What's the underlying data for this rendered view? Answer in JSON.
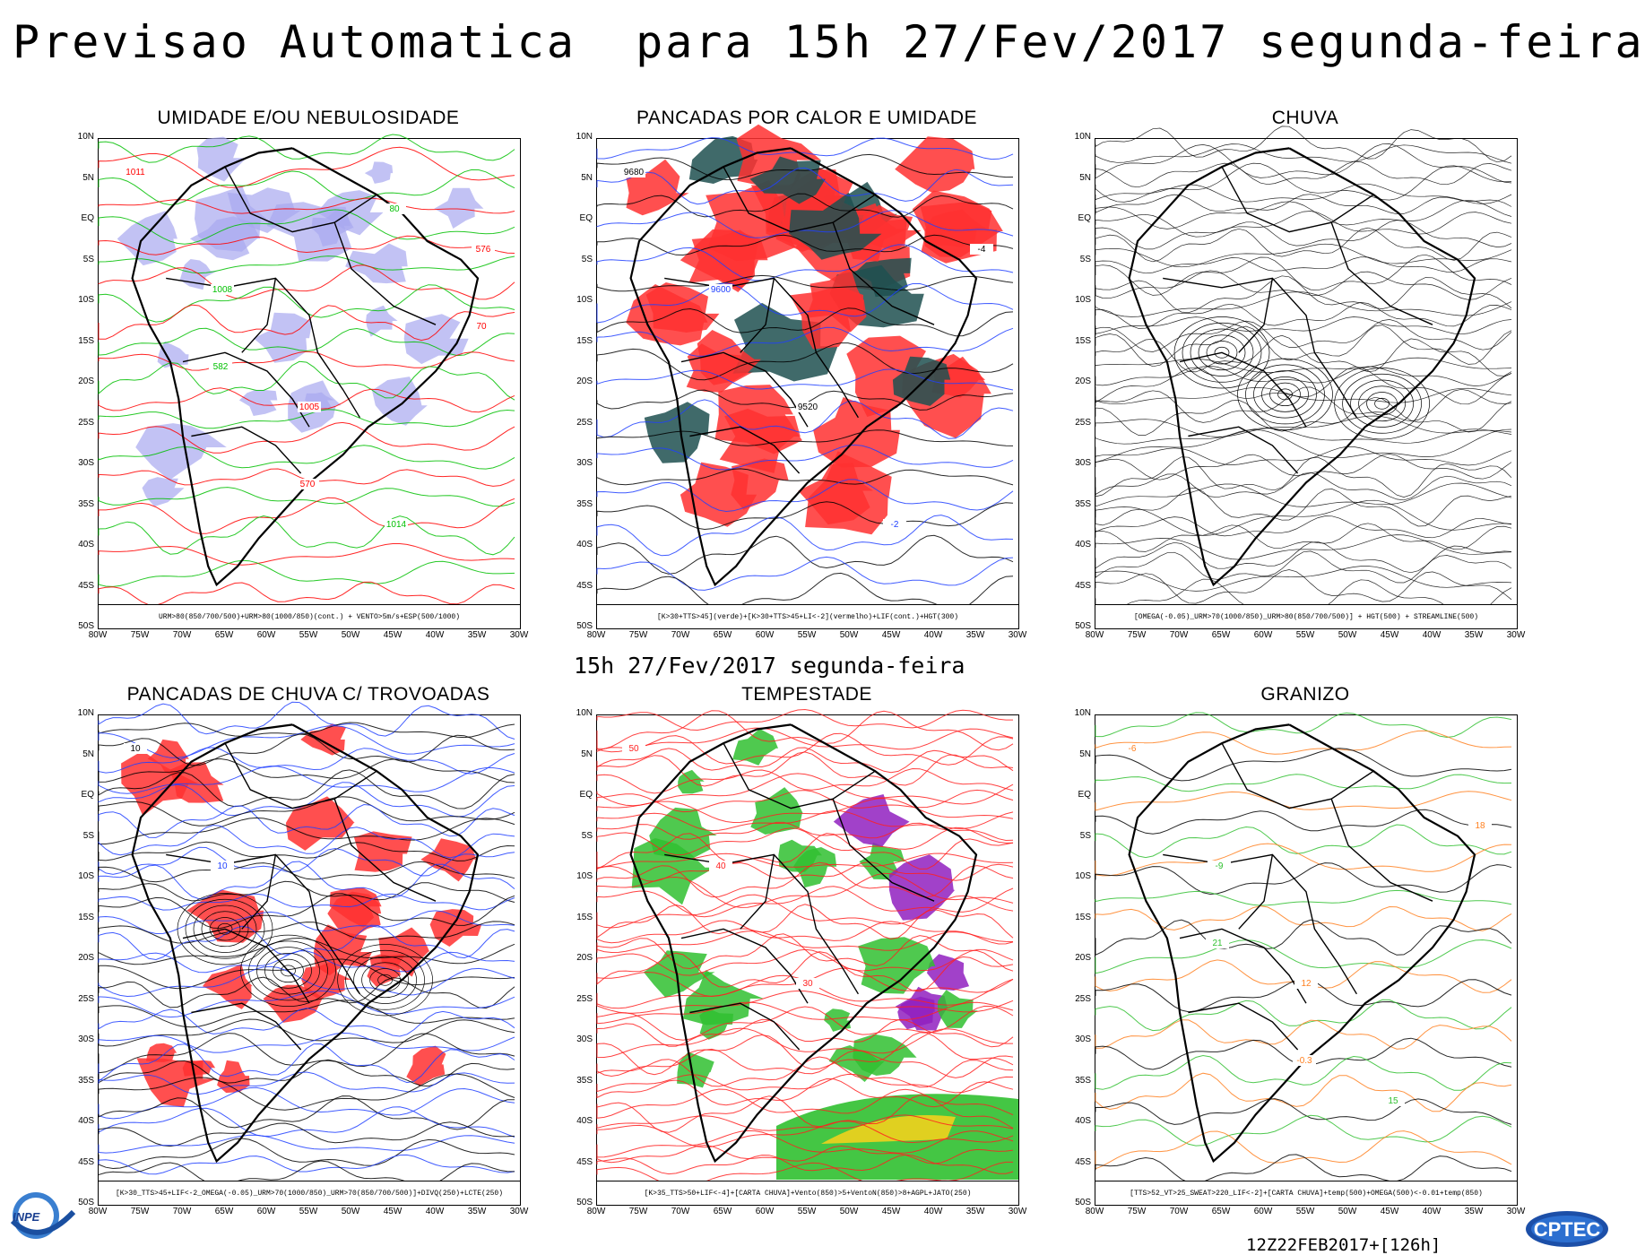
{
  "header": {
    "title": "Previsao Automatica  para 15h 27/Fev/2017 segunda-feira",
    "subtitle": "15h 27/Fev/2017 segunda-feira",
    "run": "12Z22FEB2017+[126h]"
  },
  "axes": {
    "lat_labels": [
      "10N",
      "5N",
      "EQ",
      "5S",
      "10S",
      "15S",
      "20S",
      "25S",
      "30S",
      "35S",
      "40S",
      "45S",
      "50S"
    ],
    "lon_labels": [
      "80W",
      "75W",
      "70W",
      "65W",
      "60W",
      "55W",
      "50W",
      "45W",
      "40W",
      "35W",
      "30W"
    ]
  },
  "panels": [
    {
      "title": "UMIDADE E/OU NEBULOSIDADE",
      "legend": "URM>80(850/700/500)+URM>80(1000/850)(cont.) + VENTO>5m/s+ESP(500/1000)",
      "contour_labels": [
        "1011",
        "1008",
        "1005",
        "1014",
        "576",
        "582",
        "570",
        "80",
        "70"
      ],
      "colors": {
        "fill": "#a8a8f0",
        "contour1": "#00c000",
        "contour2": "#ff0000"
      }
    },
    {
      "title": "PANCADAS POR CALOR E UMIDADE",
      "legend": "[K>30+TTS>45](verde)+[K>30+TTS>45+LI<-2](vermelho)+LIF(cont.)+HGT(300)",
      "contour_labels": [
        "9680",
        "9600",
        "9520",
        "-2",
        "-4"
      ],
      "colors": {
        "fill": "#ff3030",
        "fill2": "#1e5050",
        "contour1": "#2040ff",
        "contour2": "#000000"
      }
    },
    {
      "title": "CHUVA",
      "legend": "[OMEGA(-0.05)_URM>70(1000/850)_URM>80(850/700/500)] + HGT(500) + STREAMLINE(500)",
      "contour_labels": [],
      "colors": {
        "fill": "#ffffff",
        "contour1": "#000000"
      }
    },
    {
      "title": "PANCADAS DE CHUVA C/ TROVOADAS",
      "legend": "[K>30_TTS>45+LIF<-2_OMEGA(-0.05)_URM>70(1000/850)_URM>70(850/700/500)]+DIVQ(250)+LCTE(250)",
      "contour_labels": [
        "10",
        "10"
      ],
      "colors": {
        "fill": "#ff3030",
        "contour1": "#2040ff",
        "contour2": "#000000"
      }
    },
    {
      "title": "TEMPESTADE",
      "legend": "[K>35_TTS>50+LIF<-4]+[CARTA CHUVA]+Vento(850)>5+VentoN(850)>8+AGPL+JATO(250)",
      "contour_labels": [
        "50",
        "40",
        "30"
      ],
      "colors": {
        "fill": "#30c030",
        "fill2": "#9020c0",
        "fill3": "#e0d020",
        "contour1": "#ff2020"
      }
    },
    {
      "title": "GRANIZO",
      "legend": "[TTS>52_VT>25_SWEAT>220_LIF<-2]+[CARTA CHUVA]+temp(500)+OMEGA(500)<-0.01+temp(850)",
      "contour_labels": [
        "-6",
        "-9",
        "12",
        "15",
        "18",
        "21",
        "-0.3"
      ],
      "colors": {
        "fill": "#ffffff",
        "contour1": "#30c030",
        "contour2": "#ff8020",
        "contour3": "#000000"
      }
    }
  ],
  "logos": {
    "left": "INPE",
    "right": "CPTEC"
  }
}
